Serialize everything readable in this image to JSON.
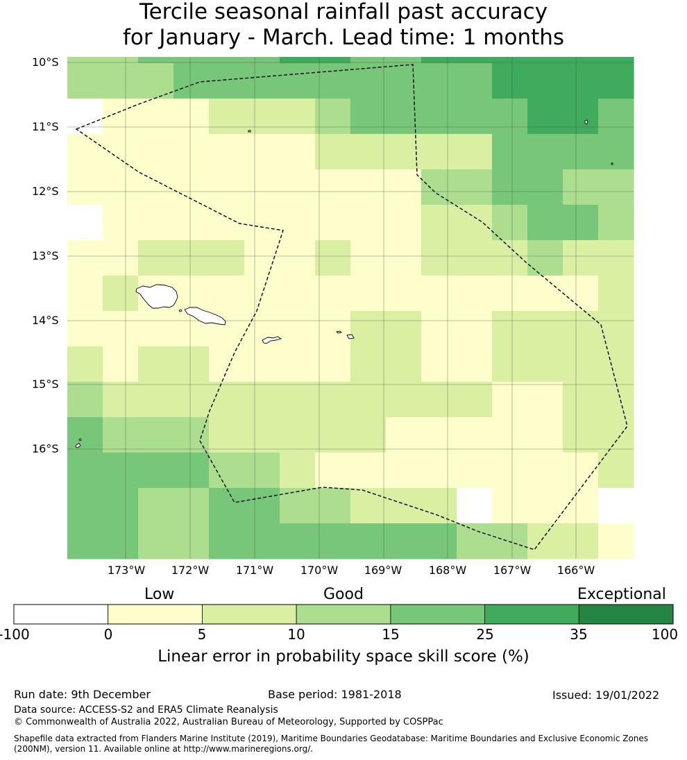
{
  "title": {
    "line1": "Tercile seasonal rainfall past accuracy",
    "line2": "for January - March. Lead time: 1 months"
  },
  "map": {
    "lat_labels": [
      "10°S",
      "11°S",
      "12°S",
      "13°S",
      "14°S",
      "15°S",
      "16°S"
    ],
    "lon_labels": [
      "173°W",
      "172°W",
      "171°W",
      "170°W",
      "169°W",
      "168°W",
      "167°W",
      "166°W"
    ],
    "skill_grid_category_index": [
      [
        3,
        3,
        4,
        4,
        4,
        4,
        5,
        5,
        4,
        4,
        5,
        5,
        5,
        5,
        5,
        5
      ],
      [
        3,
        3,
        3,
        4,
        4,
        4,
        4,
        4,
        4,
        4,
        4,
        4,
        5,
        5,
        5,
        5
      ],
      [
        0,
        1,
        1,
        1,
        2,
        2,
        2,
        3,
        4,
        4,
        4,
        4,
        4,
        5,
        5,
        4
      ],
      [
        1,
        1,
        1,
        1,
        1,
        1,
        1,
        2,
        2,
        2,
        2,
        2,
        4,
        4,
        4,
        4
      ],
      [
        1,
        1,
        1,
        1,
        1,
        1,
        1,
        1,
        1,
        1,
        3,
        3,
        4,
        4,
        3,
        3
      ],
      [
        0,
        1,
        1,
        1,
        1,
        1,
        1,
        1,
        1,
        1,
        2,
        2,
        3,
        4,
        4,
        3
      ],
      [
        1,
        1,
        2,
        2,
        2,
        1,
        1,
        2,
        1,
        1,
        2,
        2,
        2,
        3,
        2,
        2
      ],
      [
        1,
        2,
        1,
        1,
        1,
        1,
        1,
        1,
        1,
        1,
        1,
        1,
        1,
        1,
        1,
        2
      ],
      [
        1,
        1,
        1,
        1,
        1,
        1,
        1,
        1,
        2,
        2,
        1,
        1,
        2,
        2,
        2,
        2
      ],
      [
        2,
        1,
        2,
        2,
        1,
        1,
        1,
        1,
        2,
        2,
        1,
        1,
        2,
        2,
        2,
        2
      ],
      [
        3,
        2,
        2,
        2,
        2,
        2,
        2,
        2,
        2,
        2,
        2,
        2,
        1,
        1,
        2,
        2
      ],
      [
        4,
        3,
        3,
        3,
        2,
        2,
        2,
        2,
        2,
        1,
        1,
        1,
        1,
        1,
        2,
        2
      ],
      [
        4,
        4,
        4,
        4,
        3,
        3,
        2,
        1,
        1,
        1,
        1,
        1,
        1,
        1,
        1,
        2
      ],
      [
        4,
        4,
        3,
        3,
        4,
        4,
        3,
        3,
        2,
        2,
        2,
        0,
        1,
        1,
        1,
        0
      ],
      [
        4,
        4,
        3,
        3,
        4,
        4,
        4,
        4,
        4,
        4,
        4,
        3,
        3,
        2,
        2,
        1
      ]
    ],
    "colors": {
      "land": "#ffffff",
      "coast": "#000000",
      "eez_boundary": "#000000",
      "grid": "#444444"
    }
  },
  "legend": {
    "categories": [
      {
        "range": "-100 to 0",
        "color": "#ffffff"
      },
      {
        "range": "0 to 5",
        "color": "#fefecc"
      },
      {
        "range": "5 to 10",
        "color": "#d9f0a3"
      },
      {
        "range": "10 to 15",
        "color": "#addd8e"
      },
      {
        "range": "15 to 25",
        "color": "#78c679"
      },
      {
        "range": "25 to 35",
        "color": "#41ab5d"
      },
      {
        "range": "35 to 100",
        "color": "#238443"
      }
    ],
    "ticks": [
      "-100",
      "0",
      "5",
      "10",
      "15",
      "25",
      "35",
      "100"
    ],
    "labels": {
      "low": "Low",
      "good": "Good",
      "exceptional": "Exceptional"
    },
    "axis_label": "Linear error in probability space skill score (%)"
  },
  "footer": {
    "run_date": "Run date: 9th December",
    "base_period": "Base period: 1981-2018",
    "issued": "Issued: 19/01/2022",
    "data_source": "Data source: ACCESS-S2 and ERA5 Climate Reanalysis",
    "copyright": "© Commonwealth of Australia 2022, Australian Bureau of Meteorology, Supported by COSPPac",
    "shapefile_note": "Shapefile data extracted from Flanders Marine Institute (2019), Maritime Boundaries Geodatabase: Maritime Boundaries and Exclusive Economic Zones (200NM), version 11. Available online at http://www.marineregions.org/."
  }
}
